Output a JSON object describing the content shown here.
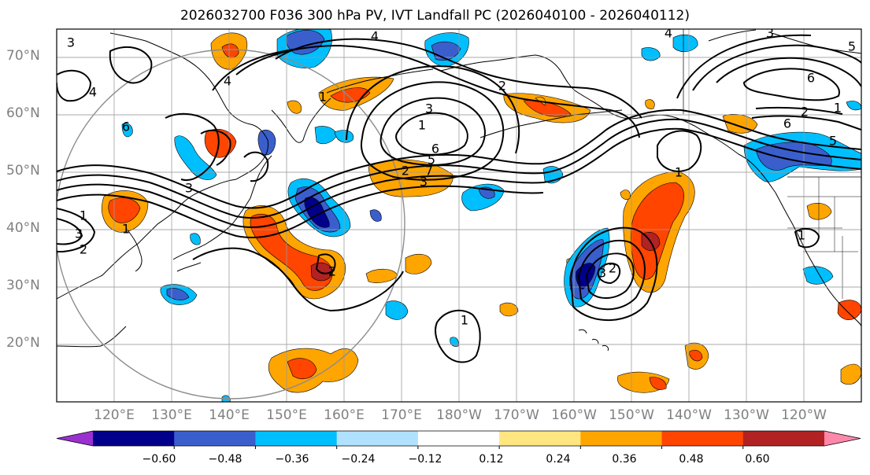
{
  "title": "2026032700 F036 300 hPa PV, IVT Landfall PC (2026040100 - 2026040112)",
  "lat_labels": [
    "70°N",
    "60°N",
    "50°N",
    "40°N",
    "30°N",
    "20°N"
  ],
  "lon_labels": [
    "120°E",
    "130°E",
    "140°E",
    "150°E",
    "160°E",
    "170°E",
    "180°W",
    "170°W",
    "160°W",
    "150°W",
    "140°W",
    "130°W",
    "120°W"
  ],
  "colorbar": {
    "ticks": [
      "−0.60",
      "−0.48",
      "−0.36",
      "−0.24",
      "−0.12",
      "0.12",
      "0.24",
      "0.36",
      "0.48",
      "0.60"
    ],
    "colors": [
      "#9b30d0",
      "#00008b",
      "#3a5fcd",
      "#00bfff",
      "#b0e2ff",
      "#ffffff",
      "#ffe680",
      "#ffa500",
      "#ff4500",
      "#b22222",
      "#ff88aa"
    ]
  },
  "contour_labels": [
    "4",
    "4",
    "3",
    "4",
    "1",
    "2",
    "3",
    "1",
    "2",
    "6",
    "5",
    "7",
    "3",
    "1",
    "2",
    "3",
    "1",
    "2",
    "3",
    "4",
    "5",
    "6",
    "1",
    "1",
    "3",
    "2",
    "1",
    "2",
    "6",
    "5",
    "3",
    "1",
    "6"
  ],
  "colors": {
    "grid": "#999999",
    "coast": "#000000",
    "circle": "#8c8c8c"
  }
}
